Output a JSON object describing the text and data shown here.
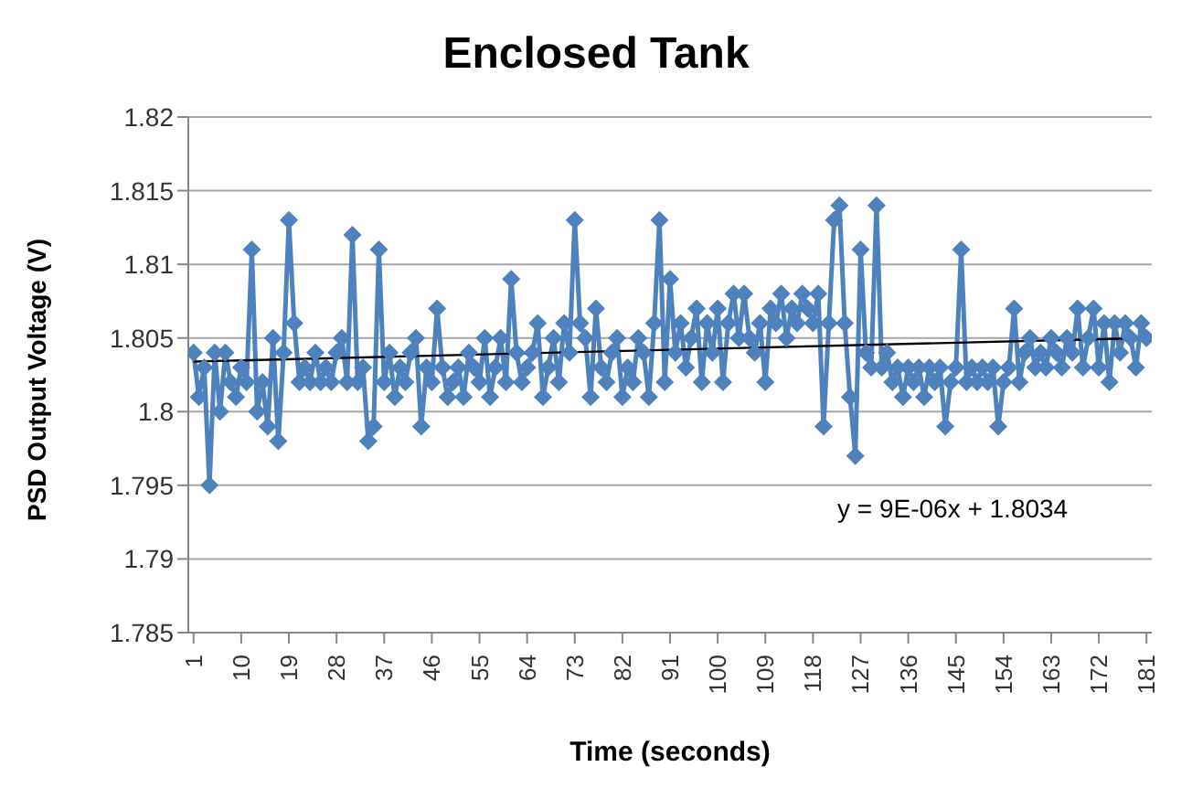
{
  "chart_data": {
    "type": "line",
    "title": "Enclosed Tank",
    "xlabel": "Time (seconds)",
    "ylabel": "PSD Output Voltage (V)",
    "x": [
      1,
      2,
      3,
      4,
      5,
      6,
      7,
      8,
      9,
      10,
      11,
      12,
      13,
      14,
      15,
      16,
      17,
      18,
      19,
      20,
      21,
      22,
      23,
      24,
      25,
      26,
      27,
      28,
      29,
      30,
      31,
      32,
      33,
      34,
      35,
      36,
      37,
      38,
      39,
      40,
      41,
      42,
      43,
      44,
      45,
      46,
      47,
      48,
      49,
      50,
      51,
      52,
      53,
      54,
      55,
      56,
      57,
      58,
      59,
      60,
      61,
      62,
      63,
      64,
      65,
      66,
      67,
      68,
      69,
      70,
      71,
      72,
      73,
      74,
      75,
      76,
      77,
      78,
      79,
      80,
      81,
      82,
      83,
      84,
      85,
      86,
      87,
      88,
      89,
      90,
      91,
      92,
      93,
      94,
      95,
      96,
      97,
      98,
      99,
      100,
      101,
      102,
      103,
      104,
      105,
      106,
      107,
      108,
      109,
      110,
      111,
      112,
      113,
      114,
      115,
      116,
      117,
      118,
      119,
      120,
      121,
      122,
      123,
      124,
      125,
      126,
      127,
      128,
      129,
      130,
      131,
      132,
      133,
      134,
      135,
      136,
      137,
      138,
      139,
      140,
      141,
      142,
      143,
      144,
      145,
      146,
      147,
      148,
      149,
      150,
      151,
      152,
      153,
      154,
      155,
      156,
      157,
      158,
      159,
      160,
      161,
      162,
      163,
      164,
      165,
      166,
      167,
      168,
      169,
      170,
      171,
      172,
      173,
      174,
      175,
      176,
      177,
      178,
      179,
      180,
      181
    ],
    "series": [
      {
        "color": "#4f81bd",
        "marker": "diamond",
        "values": [
          1.804,
          1.801,
          1.803,
          1.795,
          1.804,
          1.8,
          1.804,
          1.802,
          1.801,
          1.803,
          1.802,
          1.811,
          1.8,
          1.802,
          1.799,
          1.805,
          1.798,
          1.804,
          1.813,
          1.806,
          1.802,
          1.803,
          1.802,
          1.804,
          1.802,
          1.803,
          1.802,
          1.804,
          1.805,
          1.802,
          1.812,
          1.802,
          1.803,
          1.798,
          1.799,
          1.811,
          1.802,
          1.804,
          1.801,
          1.803,
          1.802,
          1.804,
          1.805,
          1.799,
          1.803,
          1.802,
          1.807,
          1.803,
          1.801,
          1.802,
          1.803,
          1.801,
          1.804,
          1.803,
          1.802,
          1.805,
          1.801,
          1.803,
          1.805,
          1.802,
          1.809,
          1.804,
          1.802,
          1.803,
          1.804,
          1.806,
          1.801,
          1.803,
          1.805,
          1.802,
          1.806,
          1.804,
          1.813,
          1.806,
          1.805,
          1.801,
          1.807,
          1.803,
          1.802,
          1.804,
          1.805,
          1.801,
          1.803,
          1.802,
          1.805,
          1.804,
          1.801,
          1.806,
          1.813,
          1.802,
          1.809,
          1.804,
          1.806,
          1.803,
          1.805,
          1.807,
          1.802,
          1.806,
          1.804,
          1.807,
          1.802,
          1.806,
          1.808,
          1.805,
          1.808,
          1.805,
          1.804,
          1.806,
          1.802,
          1.807,
          1.806,
          1.808,
          1.805,
          1.807,
          1.806,
          1.808,
          1.807,
          1.806,
          1.808,
          1.799,
          1.806,
          1.813,
          1.814,
          1.806,
          1.801,
          1.797,
          1.811,
          1.804,
          1.803,
          1.814,
          1.803,
          1.804,
          1.802,
          1.803,
          1.801,
          1.803,
          1.802,
          1.803,
          1.801,
          1.803,
          1.802,
          1.803,
          1.799,
          1.802,
          1.803,
          1.811,
          1.802,
          1.803,
          1.802,
          1.803,
          1.802,
          1.803,
          1.799,
          1.802,
          1.803,
          1.807,
          1.802,
          1.804,
          1.805,
          1.803,
          1.804,
          1.803,
          1.805,
          1.804,
          1.803,
          1.805,
          1.804,
          1.807,
          1.803,
          1.805,
          1.807,
          1.803,
          1.806,
          1.802,
          1.806,
          1.804,
          1.806,
          1.805,
          1.803,
          1.806,
          1.805
        ]
      },
      {
        "type": "line",
        "color": "#000000",
        "marker": "none",
        "x": [
          1,
          181
        ],
        "values": [
          1.8034,
          1.805
        ]
      }
    ],
    "xlim": [
      0,
      182
    ],
    "xticks": [
      1,
      10,
      19,
      28,
      37,
      46,
      55,
      64,
      73,
      82,
      91,
      100,
      109,
      118,
      127,
      136,
      145,
      154,
      163,
      172,
      181
    ],
    "ylim": [
      1.785,
      1.82
    ],
    "yticks": [
      1.785,
      1.79,
      1.795,
      1.8,
      1.805,
      1.81,
      1.815,
      1.82
    ],
    "grid": "y",
    "legend": false,
    "annotations": [
      "y = 9E-06x + 1.8034"
    ]
  }
}
